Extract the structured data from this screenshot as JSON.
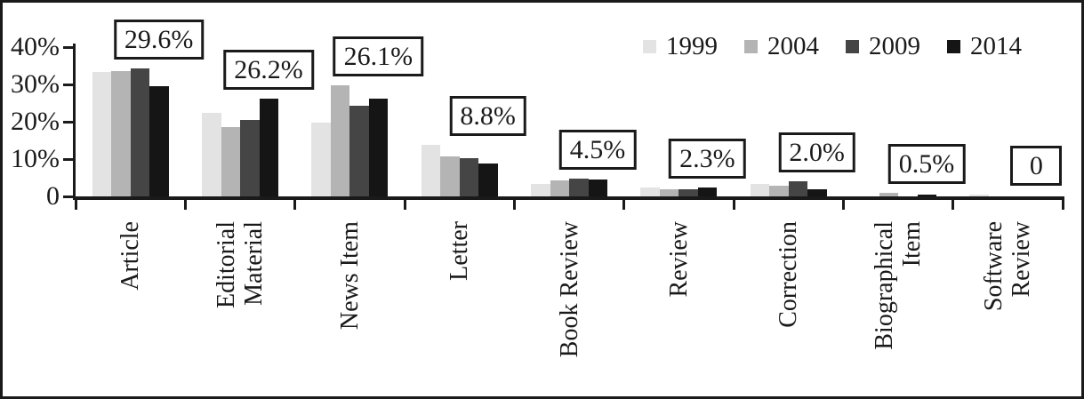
{
  "chart_data": {
    "type": "bar",
    "title": "",
    "xlabel": "",
    "ylabel": "",
    "ylim": [
      0,
      40
    ],
    "grid": false,
    "legend_position": "top-right",
    "y_ticks": [
      {
        "value": 40,
        "label": "40%"
      },
      {
        "value": 30,
        "label": "30%"
      },
      {
        "value": 20,
        "label": "20%"
      },
      {
        "value": 10,
        "label": "10%"
      },
      {
        "value": 0,
        "label": "0"
      }
    ],
    "categories": [
      "Article",
      "Editorial Material",
      "News Item",
      "Letter",
      "Book Review",
      "Review",
      "Correction",
      "Biographical Item",
      "Software Review"
    ],
    "category_display_lines": [
      [
        "Article"
      ],
      [
        "Editorial",
        "Material"
      ],
      [
        "News Item"
      ],
      [
        "Letter"
      ],
      [
        "Book Review"
      ],
      [
        "Review"
      ],
      [
        "Correction"
      ],
      [
        "Biographical",
        "Item"
      ],
      [
        "Software",
        "Review"
      ]
    ],
    "series": [
      {
        "name": "1999",
        "color": "#e3e3e3",
        "values": [
          33.3,
          22.5,
          19.7,
          13.9,
          3.4,
          2.4,
          3.3,
          0,
          0.5
        ]
      },
      {
        "name": "2004",
        "color": "#b4b4b4",
        "values": [
          33.5,
          18.5,
          29.8,
          10.7,
          4.4,
          1.8,
          2.8,
          0.9,
          0
        ]
      },
      {
        "name": "2009",
        "color": "#454545",
        "values": [
          34.3,
          20.5,
          24.4,
          10.2,
          4.8,
          2.0,
          4.1,
          0,
          0
        ]
      },
      {
        "name": "2014",
        "color": "#151515",
        "values": [
          29.6,
          26.2,
          26.1,
          8.8,
          4.5,
          2.3,
          2.0,
          0.5,
          0
        ]
      }
    ],
    "annotations": [
      "29.6%",
      "26.2%",
      "26.1%",
      "8.8%",
      "4.5%",
      "2.3%",
      "2.0%",
      "0.5%",
      "0"
    ],
    "annotation_refers_to_series": "2014",
    "axis_color": "#1a1a1a",
    "background": "#ffffff"
  }
}
